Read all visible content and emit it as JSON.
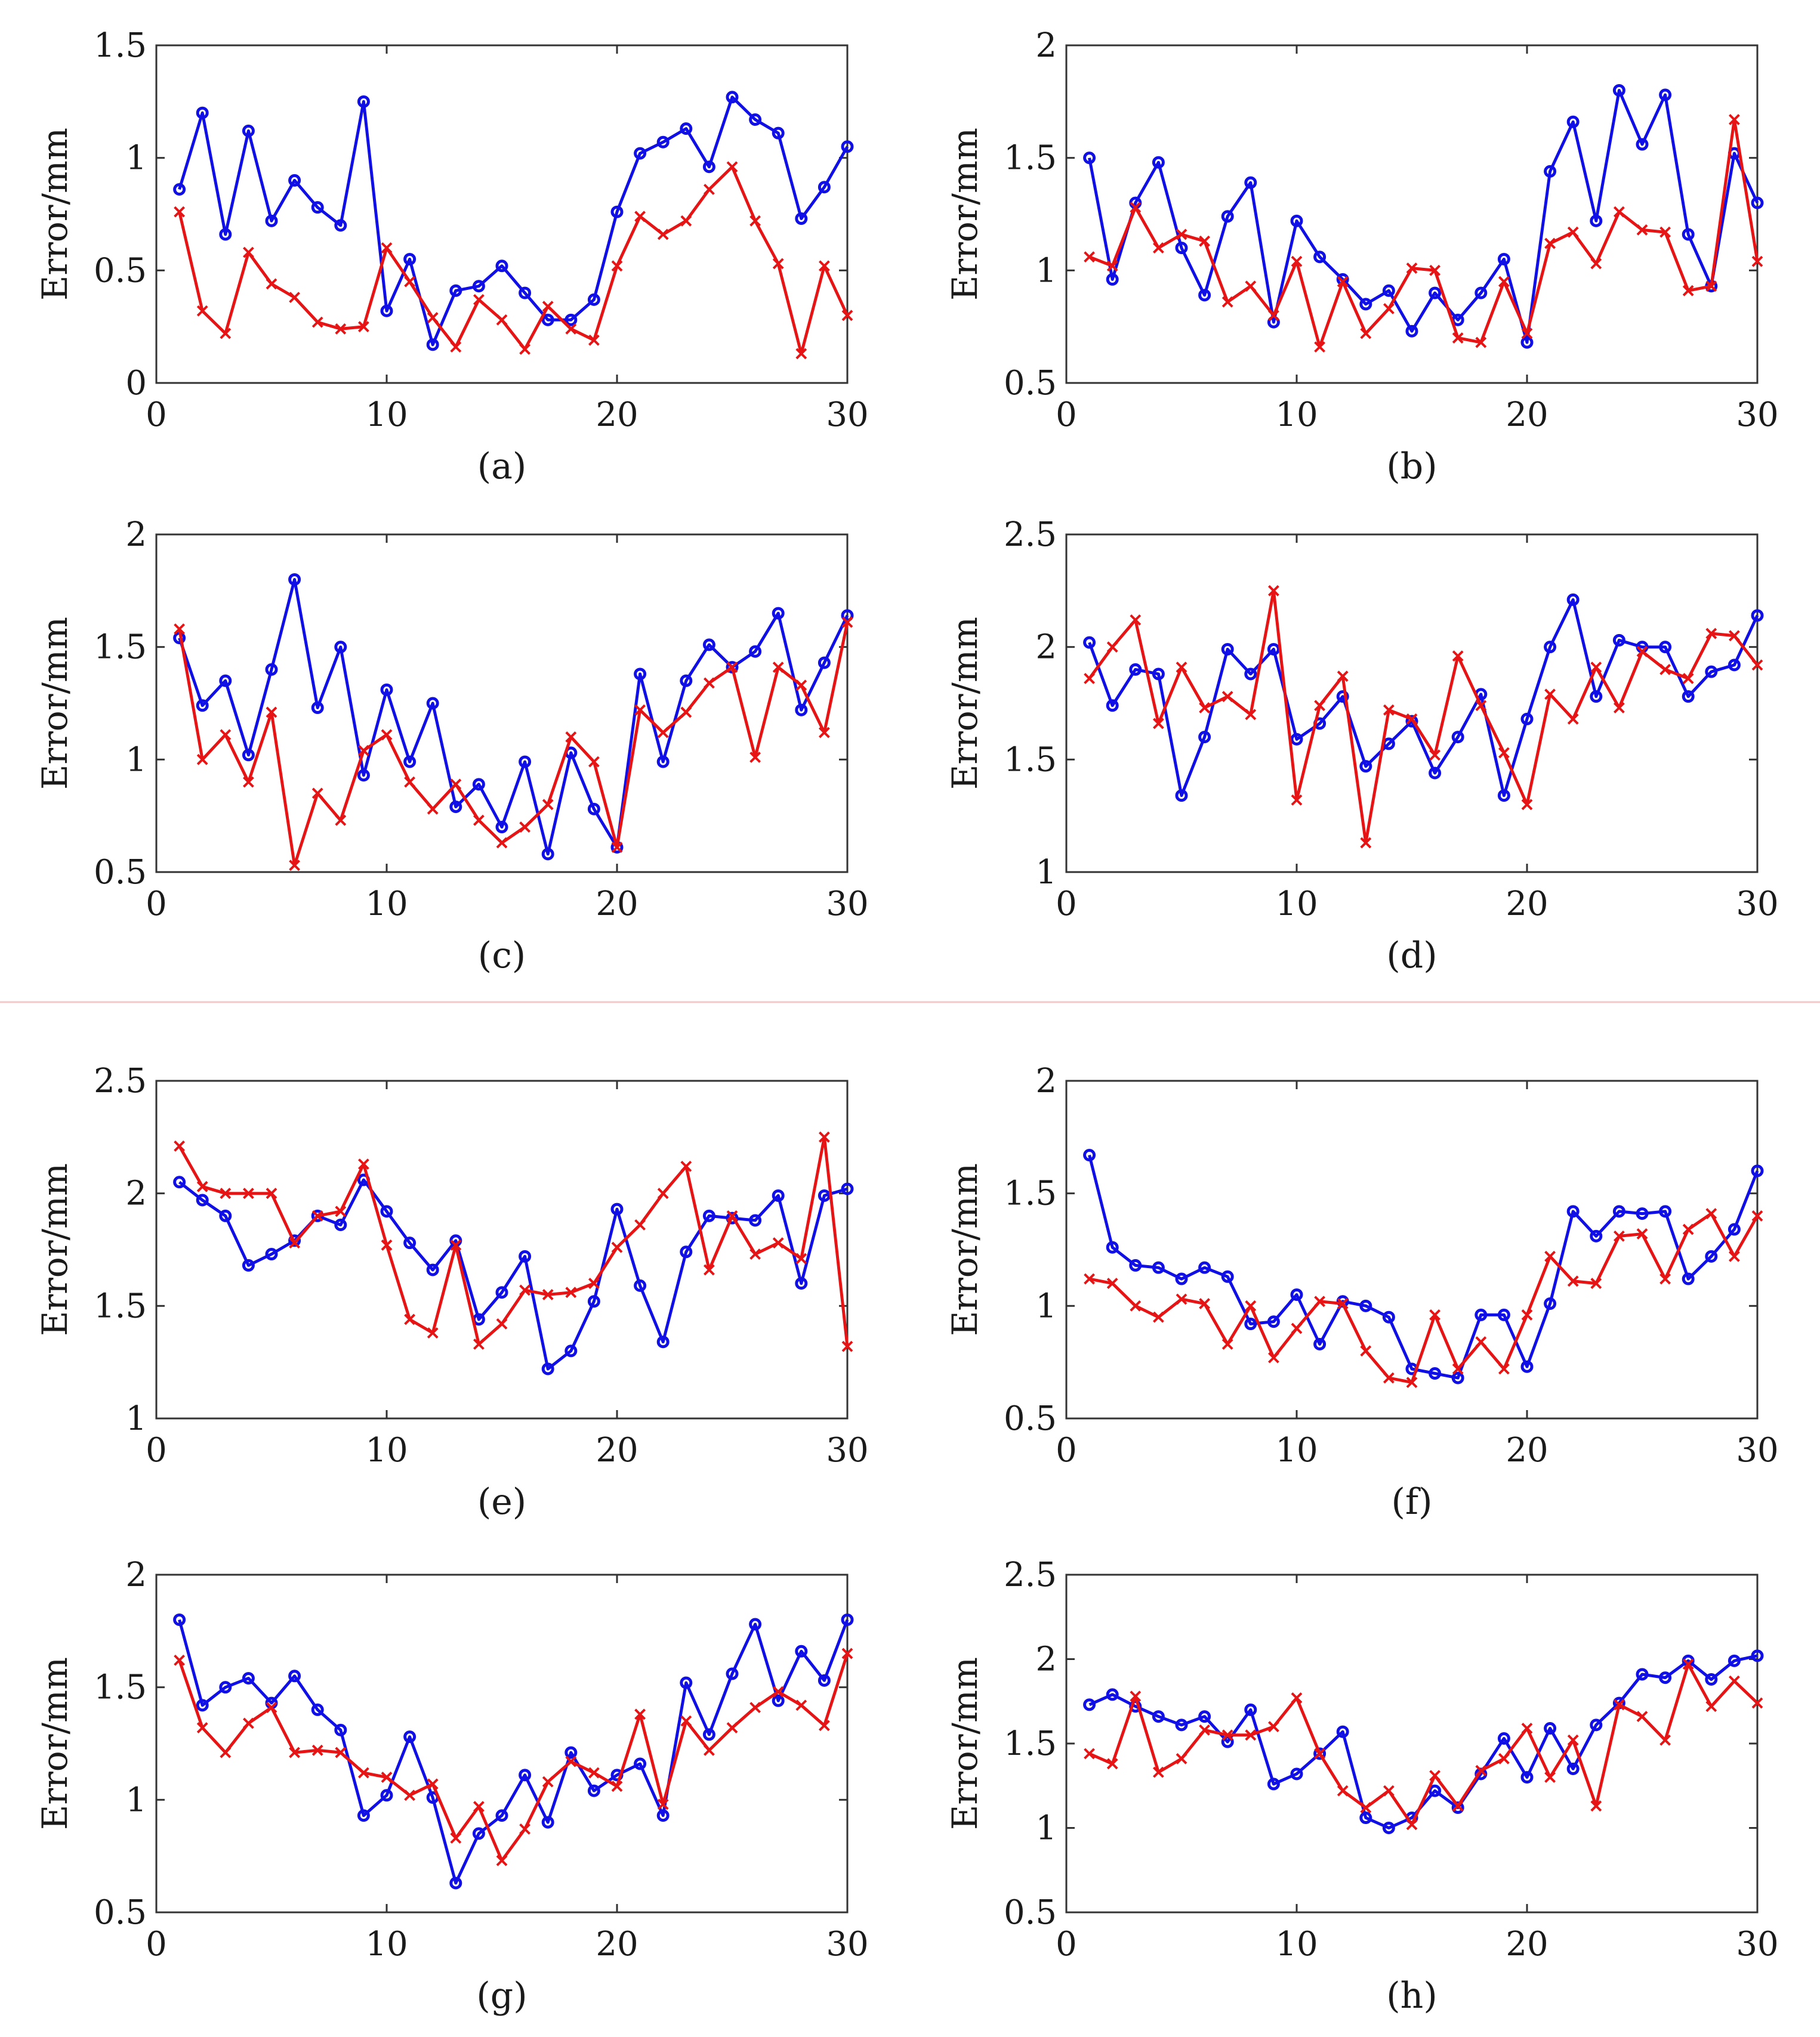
{
  "colors": {
    "series_blue": "#1010e6",
    "series_red": "#e61414",
    "axis": "#333333",
    "separator": "#f2c8c8"
  },
  "chart_data": [
    {
      "panel": "(a)",
      "type": "line",
      "ylabel": "Error/mm",
      "xlabel": "",
      "xlim": [
        0,
        30
      ],
      "ylim": [
        0,
        1.5
      ],
      "xticks": [
        "0",
        "10",
        "20",
        "30"
      ],
      "yticks": [
        "0",
        "0.5",
        "1",
        "1.5"
      ],
      "x": [
        1,
        2,
        3,
        4,
        5,
        6,
        7,
        8,
        9,
        10,
        11,
        12,
        13,
        14,
        15,
        16,
        17,
        18,
        19,
        20,
        21,
        22,
        23,
        24,
        25,
        26,
        27,
        28,
        29,
        30
      ],
      "series": [
        {
          "name": "blue",
          "marker": "circle",
          "values": [
            0.86,
            1.2,
            0.66,
            1.12,
            0.72,
            0.9,
            0.78,
            0.7,
            1.25,
            0.32,
            0.55,
            0.17,
            0.41,
            0.43,
            0.52,
            0.4,
            0.28,
            0.28,
            0.37,
            0.76,
            1.02,
            1.07,
            1.13,
            0.96,
            1.27,
            1.17,
            1.11,
            0.73,
            0.87,
            1.05
          ]
        },
        {
          "name": "red",
          "marker": "x",
          "values": [
            0.76,
            0.32,
            0.22,
            0.58,
            0.44,
            0.38,
            0.27,
            0.24,
            0.25,
            0.6,
            0.45,
            0.29,
            0.16,
            0.37,
            0.28,
            0.15,
            0.34,
            0.24,
            0.19,
            0.52,
            0.74,
            0.66,
            0.72,
            0.86,
            0.96,
            0.72,
            0.53,
            0.13,
            0.52,
            0.3
          ]
        }
      ]
    },
    {
      "panel": "(b)",
      "type": "line",
      "ylabel": "Error/mm",
      "xlabel": "",
      "xlim": [
        0,
        30
      ],
      "ylim": [
        0.5,
        2
      ],
      "xticks": [
        "0",
        "10",
        "20",
        "30"
      ],
      "yticks": [
        "0.5",
        "1",
        "1.5",
        "2"
      ],
      "x": [
        1,
        2,
        3,
        4,
        5,
        6,
        7,
        8,
        9,
        10,
        11,
        12,
        13,
        14,
        15,
        16,
        17,
        18,
        19,
        20,
        21,
        22,
        23,
        24,
        25,
        26,
        27,
        28,
        29,
        30
      ],
      "series": [
        {
          "name": "blue",
          "marker": "circle",
          "values": [
            1.5,
            0.96,
            1.3,
            1.48,
            1.1,
            0.89,
            1.24,
            1.39,
            0.77,
            1.22,
            1.06,
            0.96,
            0.85,
            0.91,
            0.73,
            0.9,
            0.78,
            0.9,
            1.05,
            0.68,
            1.44,
            1.66,
            1.22,
            1.8,
            1.56,
            1.78,
            1.16,
            0.93,
            1.52,
            1.3
          ]
        },
        {
          "name": "red",
          "marker": "x",
          "values": [
            1.06,
            1.02,
            1.28,
            1.1,
            1.16,
            1.13,
            0.86,
            0.93,
            0.8,
            1.04,
            0.66,
            0.95,
            0.72,
            0.83,
            1.01,
            1.0,
            0.7,
            0.68,
            0.95,
            0.72,
            1.12,
            1.17,
            1.03,
            1.26,
            1.18,
            1.17,
            0.91,
            0.93,
            1.67,
            1.04
          ]
        }
      ]
    },
    {
      "panel": "(c)",
      "type": "line",
      "ylabel": "Error/mm",
      "xlabel": "",
      "xlim": [
        0,
        30
      ],
      "ylim": [
        0.5,
        2
      ],
      "xticks": [
        "0",
        "10",
        "20",
        "30"
      ],
      "yticks": [
        "0.5",
        "1",
        "1.5",
        "2"
      ],
      "x": [
        1,
        2,
        3,
        4,
        5,
        6,
        7,
        8,
        9,
        10,
        11,
        12,
        13,
        14,
        15,
        16,
        17,
        18,
        19,
        20,
        21,
        22,
        23,
        24,
        25,
        26,
        27,
        28,
        29,
        30
      ],
      "series": [
        {
          "name": "blue",
          "marker": "circle",
          "values": [
            1.54,
            1.24,
            1.35,
            1.02,
            1.4,
            1.8,
            1.23,
            1.5,
            0.93,
            1.31,
            0.99,
            1.25,
            0.79,
            0.89,
            0.7,
            0.99,
            0.58,
            1.03,
            0.78,
            0.61,
            1.38,
            0.99,
            1.35,
            1.51,
            1.41,
            1.48,
            1.65,
            1.22,
            1.43,
            1.64
          ]
        },
        {
          "name": "red",
          "marker": "x",
          "values": [
            1.58,
            1.0,
            1.11,
            0.9,
            1.21,
            0.53,
            0.85,
            0.73,
            1.04,
            1.11,
            0.9,
            0.78,
            0.89,
            0.73,
            0.63,
            0.7,
            0.8,
            1.1,
            0.99,
            0.61,
            1.22,
            1.12,
            1.21,
            1.34,
            1.41,
            1.01,
            1.41,
            1.33,
            1.12,
            1.61
          ]
        }
      ]
    },
    {
      "panel": "(d)",
      "type": "line",
      "ylabel": "Error/mm",
      "xlabel": "",
      "xlim": [
        0,
        30
      ],
      "ylim": [
        1,
        2.5
      ],
      "xticks": [
        "0",
        "10",
        "20",
        "30"
      ],
      "yticks": [
        "1",
        "1.5",
        "2",
        "2.5"
      ],
      "x": [
        1,
        2,
        3,
        4,
        5,
        6,
        7,
        8,
        9,
        10,
        11,
        12,
        13,
        14,
        15,
        16,
        17,
        18,
        19,
        20,
        21,
        22,
        23,
        24,
        25,
        26,
        27,
        28,
        29,
        30
      ],
      "series": [
        {
          "name": "blue",
          "marker": "circle",
          "values": [
            2.02,
            1.74,
            1.9,
            1.88,
            1.34,
            1.6,
            1.99,
            1.88,
            1.99,
            1.59,
            1.66,
            1.78,
            1.47,
            1.57,
            1.67,
            1.44,
            1.6,
            1.79,
            1.34,
            1.68,
            2.0,
            2.21,
            1.78,
            2.03,
            2.0,
            2.0,
            1.78,
            1.89,
            1.92,
            2.14
          ]
        },
        {
          "name": "red",
          "marker": "x",
          "values": [
            1.86,
            2.0,
            2.12,
            1.66,
            1.91,
            1.73,
            1.78,
            1.7,
            2.25,
            1.32,
            1.74,
            1.87,
            1.13,
            1.72,
            1.68,
            1.52,
            1.96,
            1.74,
            1.53,
            1.3,
            1.79,
            1.68,
            1.91,
            1.73,
            1.98,
            1.9,
            1.86,
            2.06,
            2.05,
            1.92
          ]
        }
      ]
    },
    {
      "panel": "(e)",
      "type": "line",
      "ylabel": "Error/mm",
      "xlabel": "",
      "xlim": [
        0,
        30
      ],
      "ylim": [
        1,
        2.5
      ],
      "xticks": [
        "0",
        "10",
        "20",
        "30"
      ],
      "yticks": [
        "1",
        "1.5",
        "2",
        "2.5"
      ],
      "x": [
        1,
        2,
        3,
        4,
        5,
        6,
        7,
        8,
        9,
        10,
        11,
        12,
        13,
        14,
        15,
        16,
        17,
        18,
        19,
        20,
        21,
        22,
        23,
        24,
        25,
        26,
        27,
        28,
        29,
        30
      ],
      "series": [
        {
          "name": "blue",
          "marker": "circle",
          "values": [
            2.05,
            1.97,
            1.9,
            1.68,
            1.73,
            1.79,
            1.9,
            1.86,
            2.06,
            1.92,
            1.78,
            1.66,
            1.79,
            1.44,
            1.56,
            1.72,
            1.22,
            1.3,
            1.52,
            1.93,
            1.59,
            1.34,
            1.74,
            1.9,
            1.89,
            1.88,
            1.99,
            1.6,
            1.99,
            2.02
          ]
        },
        {
          "name": "red",
          "marker": "x",
          "values": [
            2.21,
            2.03,
            2.0,
            2.0,
            2.0,
            1.78,
            1.9,
            1.92,
            2.13,
            1.77,
            1.44,
            1.38,
            1.77,
            1.33,
            1.42,
            1.57,
            1.55,
            1.56,
            1.6,
            1.76,
            1.86,
            2.0,
            2.12,
            1.66,
            1.9,
            1.73,
            1.78,
            1.71,
            2.25,
            1.32
          ]
        }
      ]
    },
    {
      "panel": "(f)",
      "type": "line",
      "ylabel": "Error/mm",
      "xlabel": "",
      "xlim": [
        0,
        30
      ],
      "ylim": [
        0.5,
        2
      ],
      "xticks": [
        "0",
        "10",
        "20",
        "30"
      ],
      "yticks": [
        "0.5",
        "1",
        "1.5",
        "2"
      ],
      "x": [
        1,
        2,
        3,
        4,
        5,
        6,
        7,
        8,
        9,
        10,
        11,
        12,
        13,
        14,
        15,
        16,
        17,
        18,
        19,
        20,
        21,
        22,
        23,
        24,
        25,
        26,
        27,
        28,
        29,
        30
      ],
      "series": [
        {
          "name": "blue",
          "marker": "circle",
          "values": [
            1.67,
            1.26,
            1.18,
            1.17,
            1.12,
            1.17,
            1.13,
            0.92,
            0.93,
            1.05,
            0.83,
            1.02,
            1.0,
            0.95,
            0.72,
            0.7,
            0.68,
            0.96,
            0.96,
            0.73,
            1.01,
            1.42,
            1.31,
            1.42,
            1.41,
            1.42,
            1.12,
            1.22,
            1.34,
            1.6
          ]
        },
        {
          "name": "red",
          "marker": "x",
          "values": [
            1.12,
            1.1,
            1.0,
            0.95,
            1.03,
            1.01,
            0.83,
            1.0,
            0.77,
            0.9,
            1.02,
            1.01,
            0.8,
            0.68,
            0.66,
            0.96,
            0.72,
            0.84,
            0.72,
            0.96,
            1.22,
            1.11,
            1.1,
            1.31,
            1.32,
            1.12,
            1.34,
            1.41,
            1.22,
            1.4
          ]
        }
      ]
    },
    {
      "panel": "(g)",
      "type": "line",
      "ylabel": "Error/mm",
      "xlabel": "",
      "xlim": [
        0,
        30
      ],
      "ylim": [
        0.5,
        2
      ],
      "xticks": [
        "0",
        "10",
        "20",
        "30"
      ],
      "yticks": [
        "0.5",
        "1",
        "1.5",
        "2"
      ],
      "x": [
        1,
        2,
        3,
        4,
        5,
        6,
        7,
        8,
        9,
        10,
        11,
        12,
        13,
        14,
        15,
        16,
        17,
        18,
        19,
        20,
        21,
        22,
        23,
        24,
        25,
        26,
        27,
        28,
        29,
        30
      ],
      "series": [
        {
          "name": "blue",
          "marker": "circle",
          "values": [
            1.8,
            1.42,
            1.5,
            1.54,
            1.43,
            1.55,
            1.4,
            1.31,
            0.93,
            1.02,
            1.28,
            1.01,
            0.63,
            0.85,
            0.93,
            1.11,
            0.9,
            1.21,
            1.04,
            1.11,
            1.16,
            0.93,
            1.52,
            1.29,
            1.56,
            1.78,
            1.44,
            1.66,
            1.53,
            1.8
          ]
        },
        {
          "name": "red",
          "marker": "x",
          "values": [
            1.62,
            1.32,
            1.21,
            1.34,
            1.41,
            1.21,
            1.22,
            1.21,
            1.12,
            1.1,
            1.02,
            1.07,
            0.83,
            0.97,
            0.73,
            0.87,
            1.08,
            1.17,
            1.12,
            1.06,
            1.38,
            0.98,
            1.35,
            1.22,
            1.32,
            1.41,
            1.48,
            1.42,
            1.33,
            1.65
          ]
        }
      ]
    },
    {
      "panel": "(h)",
      "type": "line",
      "ylabel": "Error/mm",
      "xlabel": "",
      "xlim": [
        0,
        30
      ],
      "ylim": [
        0.5,
        2.5
      ],
      "xticks": [
        "0",
        "10",
        "20",
        "30"
      ],
      "yticks": [
        "0.5",
        "1",
        "1.5",
        "2",
        "2.5"
      ],
      "x": [
        1,
        2,
        3,
        4,
        5,
        6,
        7,
        8,
        9,
        10,
        11,
        12,
        13,
        14,
        15,
        16,
        17,
        18,
        19,
        20,
        21,
        22,
        23,
        24,
        25,
        26,
        27,
        28,
        29,
        30
      ],
      "series": [
        {
          "name": "blue",
          "marker": "circle",
          "values": [
            1.73,
            1.79,
            1.72,
            1.66,
            1.61,
            1.66,
            1.51,
            1.7,
            1.26,
            1.32,
            1.44,
            1.57,
            1.06,
            1.0,
            1.06,
            1.22,
            1.12,
            1.32,
            1.53,
            1.3,
            1.59,
            1.35,
            1.61,
            1.74,
            1.91,
            1.89,
            1.99,
            1.88,
            1.99,
            2.02
          ]
        },
        {
          "name": "red",
          "marker": "x",
          "values": [
            1.44,
            1.38,
            1.78,
            1.33,
            1.41,
            1.58,
            1.55,
            1.55,
            1.6,
            1.77,
            1.44,
            1.22,
            1.12,
            1.22,
            1.02,
            1.31,
            1.13,
            1.34,
            1.41,
            1.59,
            1.3,
            1.52,
            1.13,
            1.73,
            1.66,
            1.52,
            1.97,
            1.72,
            1.87,
            1.74
          ]
        }
      ]
    }
  ]
}
